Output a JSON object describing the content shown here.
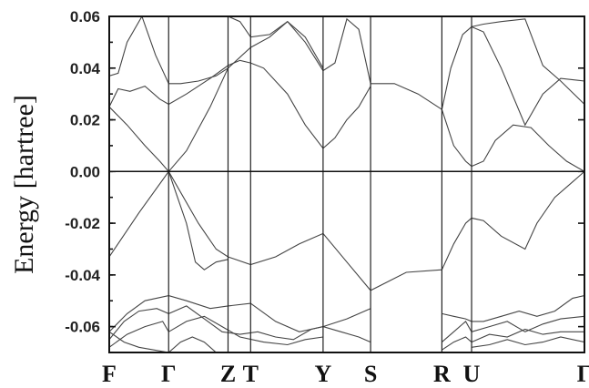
{
  "chart_data": {
    "type": "line",
    "title": "",
    "xlabel": "",
    "ylabel": "Energy  [hartree]",
    "ylim": [
      -0.07,
      0.06
    ],
    "yticks": [
      0.06,
      0.04,
      0.02,
      0.0,
      -0.02,
      -0.04,
      -0.06
    ],
    "ytick_labels": [
      "0.06",
      "0.04",
      "0.02",
      "0.00",
      "-0.02",
      "-0.04",
      "-0.06"
    ],
    "xlim": [
      0,
      8
    ],
    "kpoints": [
      {
        "label": "F",
        "x": 0
      },
      {
        "label": "Γ",
        "x": 1
      },
      {
        "label": "Z",
        "x": 2
      },
      {
        "label": "T",
        "x": 2.38
      },
      {
        "label": "Y",
        "x": 3.6
      },
      {
        "label": "S",
        "x": 4.4
      },
      {
        "label": "R",
        "x": 5.6
      },
      {
        "label": "U",
        "x": 6.1
      },
      {
        "label": "Γ",
        "x": 8
      }
    ],
    "fermi_level": 0.0,
    "grid": false,
    "series": [
      {
        "x": [
          0,
          0.15,
          0.3,
          0.55,
          0.78,
          1.0,
          1.2,
          1.5,
          1.8,
          2.0
        ],
        "values": [
          0.037,
          0.038,
          0.05,
          0.06,
          0.045,
          0.034,
          0.034,
          0.035,
          0.037,
          0.04
        ]
      },
      {
        "x": [
          0,
          0.15,
          0.35,
          0.6,
          0.85,
          1.0,
          1.3,
          1.7,
          2.0,
          2.2,
          2.38,
          2.6,
          3.0,
          3.3,
          3.6,
          3.8,
          4.0,
          4.2,
          4.4
        ],
        "values": [
          0.025,
          0.032,
          0.031,
          0.033,
          0.028,
          0.026,
          0.03,
          0.036,
          0.041,
          0.043,
          0.042,
          0.04,
          0.03,
          0.018,
          0.009,
          0.013,
          0.02,
          0.025,
          0.033
        ]
      },
      {
        "x": [
          0,
          0.3,
          0.6,
          0.85,
          1.0,
          1.3,
          1.7,
          2.0,
          2.38,
          2.7,
          3.0,
          3.3,
          3.6,
          3.8,
          4.0,
          4.2,
          4.4,
          4.8,
          5.2,
          5.6
        ],
        "values": [
          0.025,
          0.018,
          0.01,
          0.004,
          0.0,
          0.008,
          0.025,
          0.04,
          0.048,
          0.052,
          0.058,
          0.05,
          0.039,
          0.042,
          0.059,
          0.055,
          0.034,
          0.034,
          0.03,
          0.024
        ]
      },
      {
        "x": [
          2.0,
          2.2,
          2.38,
          2.7,
          3.0,
          3.3,
          3.6
        ],
        "values": [
          0.06,
          0.058,
          0.052,
          0.053,
          0.058,
          0.052,
          0.04
        ]
      },
      {
        "x": [
          0,
          0.5,
          1.0,
          1.5,
          1.8,
          2.0,
          2.38,
          2.8,
          3.2,
          3.6,
          4.0,
          4.4,
          5.0,
          5.6
        ],
        "values": [
          -0.033,
          -0.016,
          0.0,
          -0.02,
          -0.03,
          -0.033,
          -0.036,
          -0.033,
          -0.028,
          -0.024,
          -0.035,
          -0.046,
          -0.039,
          -0.038
        ]
      },
      {
        "x": [
          1.0,
          1.15,
          1.3,
          1.45,
          1.6,
          1.8,
          2.0
        ],
        "values": [
          0.0,
          -0.01,
          -0.02,
          -0.035,
          -0.038,
          -0.035,
          -0.034
        ]
      },
      {
        "x": [
          5.6,
          5.8,
          6.0,
          6.1,
          6.3,
          6.6,
          7.0,
          7.2,
          7.5,
          7.8,
          8.0
        ],
        "values": [
          -0.038,
          -0.028,
          -0.02,
          -0.018,
          -0.019,
          -0.025,
          -0.03,
          -0.02,
          -0.01,
          -0.004,
          0.0
        ]
      },
      {
        "x": [
          5.6,
          5.8,
          6.0,
          6.1,
          6.3,
          6.5,
          6.8,
          7.1,
          7.4,
          7.7,
          8.0
        ],
        "values": [
          0.024,
          0.01,
          0.004,
          0.002,
          0.004,
          0.012,
          0.018,
          0.017,
          0.01,
          0.004,
          0.0
        ]
      },
      {
        "x": [
          5.6,
          5.75,
          5.95,
          6.1,
          6.3,
          6.6,
          7.0,
          7.3,
          7.6,
          8.0
        ],
        "values": [
          0.024,
          0.04,
          0.053,
          0.056,
          0.054,
          0.04,
          0.018,
          0.03,
          0.036,
          0.035
        ]
      },
      {
        "x": [
          6.1,
          6.3,
          6.6,
          7.0,
          7.3,
          7.6,
          8.0
        ],
        "values": [
          0.056,
          0.057,
          0.058,
          0.059,
          0.041,
          0.035,
          0.026
        ]
      },
      {
        "x": [
          0,
          0.3,
          0.6,
          1.0,
          1.3,
          1.7,
          2.0,
          2.38,
          2.8,
          3.2,
          3.6,
          4.0,
          4.4
        ],
        "values": [
          -0.062,
          -0.055,
          -0.05,
          -0.048,
          -0.05,
          -0.053,
          -0.052,
          -0.051,
          -0.058,
          -0.062,
          -0.06,
          -0.057,
          -0.053
        ]
      },
      {
        "x": [
          0,
          0.25,
          0.5,
          0.8,
          1.0,
          1.3,
          1.6,
          1.9,
          2.2,
          2.5,
          2.8,
          3.1,
          3.4,
          3.6,
          3.9,
          4.2,
          4.4
        ],
        "values": [
          -0.065,
          -0.058,
          -0.054,
          -0.053,
          -0.055,
          -0.052,
          -0.057,
          -0.062,
          -0.063,
          -0.062,
          -0.064,
          -0.065,
          -0.061,
          -0.06,
          -0.062,
          -0.064,
          -0.066
        ]
      },
      {
        "x": [
          0,
          0.3,
          0.6,
          0.9,
          1.0,
          1.3,
          1.6,
          1.9,
          2.2,
          2.6,
          3.0,
          3.3,
          3.6
        ],
        "values": [
          -0.068,
          -0.063,
          -0.06,
          -0.058,
          -0.062,
          -0.058,
          -0.056,
          -0.06,
          -0.064,
          -0.066,
          -0.067,
          -0.065,
          -0.064
        ]
      },
      {
        "x": [
          0,
          0.25,
          0.5,
          0.75,
          1.0,
          1.2,
          1.4,
          1.6,
          1.8,
          2.0
        ],
        "values": [
          -0.062,
          -0.066,
          -0.068,
          -0.069,
          -0.07,
          -0.066,
          -0.064,
          -0.066,
          -0.07,
          -0.07
        ]
      },
      {
        "x": [
          5.6,
          5.8,
          6.0,
          6.1,
          6.3,
          6.6,
          6.9,
          7.2,
          7.5,
          7.8,
          8.0
        ],
        "values": [
          -0.055,
          -0.056,
          -0.057,
          -0.058,
          -0.058,
          -0.056,
          -0.054,
          -0.056,
          -0.054,
          -0.049,
          -0.048
        ]
      },
      {
        "x": [
          5.6,
          5.8,
          6.0,
          6.1,
          6.4,
          6.7,
          7.0,
          7.3,
          7.6,
          8.0
        ],
        "values": [
          -0.066,
          -0.062,
          -0.058,
          -0.062,
          -0.06,
          -0.058,
          -0.062,
          -0.059,
          -0.057,
          -0.056
        ]
      },
      {
        "x": [
          5.6,
          5.8,
          6.0,
          6.1,
          6.4,
          6.7,
          7.0,
          7.3,
          7.6,
          8.0
        ],
        "values": [
          -0.069,
          -0.066,
          -0.064,
          -0.066,
          -0.063,
          -0.064,
          -0.061,
          -0.063,
          -0.062,
          -0.062
        ]
      },
      {
        "x": [
          6.1,
          6.4,
          6.7,
          7.0,
          7.3,
          7.6,
          8.0
        ],
        "values": [
          -0.068,
          -0.067,
          -0.065,
          -0.067,
          -0.066,
          -0.064,
          -0.066
        ]
      }
    ]
  }
}
